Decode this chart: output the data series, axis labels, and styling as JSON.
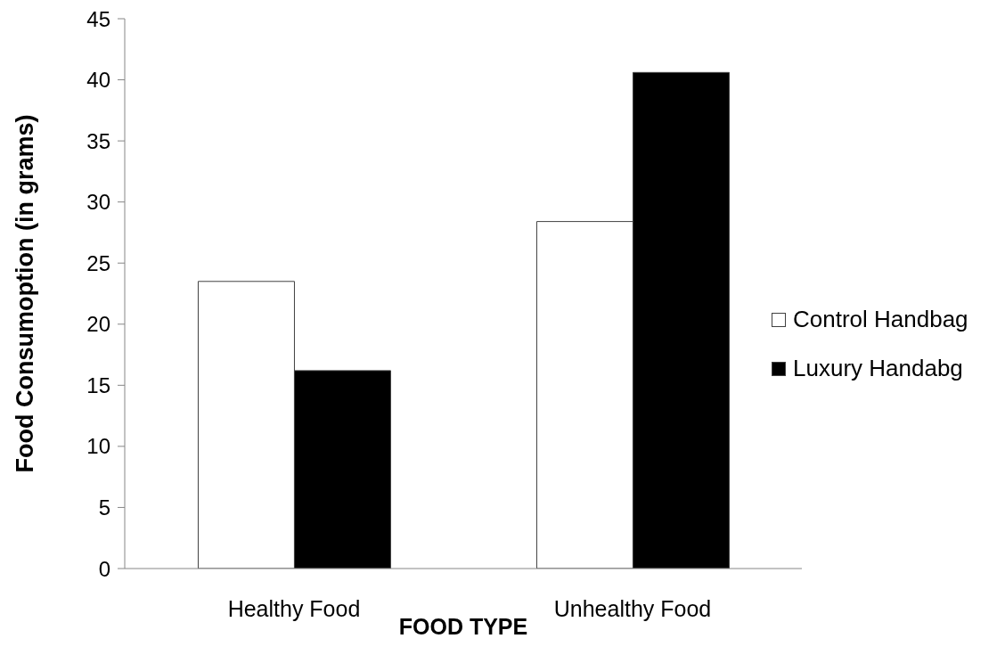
{
  "chart_data": {
    "type": "bar",
    "xlabel": "FOOD TYPE",
    "ylabel": "Food Consumoption (in grams)",
    "categories": [
      "Healthy Food",
      "Unhealthy Food"
    ],
    "series": [
      {
        "name": "Control Handbag",
        "color": "#ffffff",
        "values": [
          23.5,
          28.4
        ]
      },
      {
        "name": "Luxury Handabg",
        "color": "#000000",
        "values": [
          16.2,
          40.6
        ]
      }
    ],
    "ylim": [
      0,
      45
    ],
    "yticks": [
      0,
      5,
      10,
      15,
      20,
      25,
      30,
      35,
      40,
      45
    ],
    "legend": "right"
  }
}
